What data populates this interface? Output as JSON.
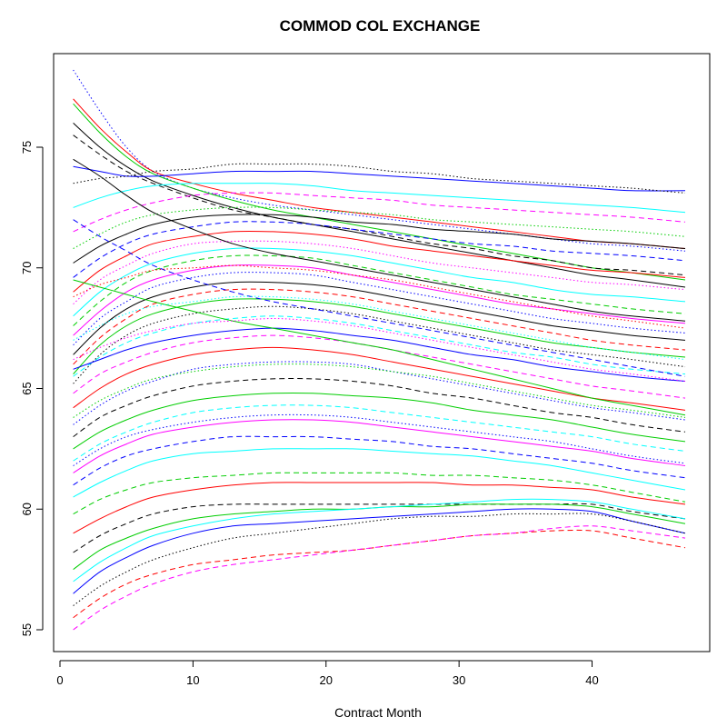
{
  "chart_data": {
    "type": "line",
    "title": "COMMOD COL EXCHANGE",
    "xlabel": "Contract Month",
    "ylabel": "",
    "xlim": [
      0,
      47
    ],
    "ylim": [
      55,
      78
    ],
    "x_ticks": [
      0,
      10,
      20,
      30,
      40
    ],
    "y_ticks": [
      55,
      60,
      65,
      70,
      75
    ],
    "x_tick_labels": [
      "0",
      "10",
      "20",
      "30",
      "40"
    ],
    "y_tick_labels": [
      "55",
      "60",
      "65",
      "70",
      "75"
    ],
    "x": [
      1,
      3,
      5,
      7,
      10,
      13,
      16,
      19,
      22,
      25,
      28,
      31,
      34,
      37,
      40,
      43,
      47
    ],
    "color_cycle": [
      "#000000",
      "#ff0000",
      "#00cd00",
      "#0000ff",
      "#00ffff",
      "#ff00ff"
    ],
    "series": [
      {
        "values": [
          78.2,
          76.5,
          75.0,
          74.0,
          73.3,
          72.9,
          72.6,
          72.4,
          72.2,
          72.0,
          71.8,
          71.6,
          71.4,
          71.2,
          71.0,
          70.9,
          70.7
        ],
        "style": "dotted",
        "color": "#0000ff"
      },
      {
        "values": [
          77.0,
          75.8,
          74.8,
          74.0,
          73.5,
          73.1,
          72.8,
          72.5,
          72.3,
          72.1,
          71.9,
          71.7,
          71.5,
          71.3,
          71.1,
          71.0,
          70.8
        ],
        "style": "solid",
        "color": "#ff0000"
      },
      {
        "values": [
          76.8,
          75.6,
          74.6,
          73.9,
          73.3,
          72.8,
          72.4,
          72.1,
          71.8,
          71.5,
          71.2,
          70.9,
          70.6,
          70.3,
          70.0,
          69.8,
          69.5
        ],
        "style": "solid",
        "color": "#00cd00"
      },
      {
        "values": [
          76.0,
          75.0,
          74.2,
          73.6,
          73.0,
          72.5,
          72.1,
          71.8,
          71.5,
          71.2,
          70.9,
          70.6,
          70.3,
          70.0,
          69.7,
          69.5,
          69.2
        ],
        "style": "solid",
        "color": "#000000"
      },
      {
        "values": [
          75.5,
          74.7,
          74.0,
          73.5,
          72.9,
          72.4,
          72.1,
          71.8,
          71.6,
          71.3,
          71.0,
          70.8,
          70.5,
          70.3,
          70.0,
          69.9,
          69.7
        ],
        "style": "dashed",
        "color": "#000000"
      },
      {
        "values": [
          74.2,
          74.0,
          73.8,
          73.8,
          73.9,
          74.0,
          74.0,
          74.0,
          73.9,
          73.8,
          73.7,
          73.6,
          73.5,
          73.4,
          73.3,
          73.2,
          73.2
        ],
        "style": "solid",
        "color": "#0000ff"
      },
      {
        "values": [
          73.5,
          73.7,
          73.8,
          74.0,
          74.1,
          74.3,
          74.3,
          74.3,
          74.2,
          74.0,
          73.9,
          73.7,
          73.6,
          73.5,
          73.4,
          73.3,
          73.1
        ],
        "style": "dotted",
        "color": "#000000"
      },
      {
        "values": [
          72.5,
          72.9,
          73.2,
          73.4,
          73.5,
          73.5,
          73.5,
          73.4,
          73.2,
          73.1,
          73.0,
          72.9,
          72.8,
          72.7,
          72.6,
          72.5,
          72.3
        ],
        "style": "solid",
        "color": "#00ffff"
      },
      {
        "values": [
          71.5,
          72.0,
          72.4,
          72.7,
          73.0,
          73.1,
          73.1,
          73.0,
          72.9,
          72.8,
          72.6,
          72.5,
          72.4,
          72.3,
          72.2,
          72.1,
          71.9
        ],
        "style": "dashed",
        "color": "#ff00ff"
      },
      {
        "values": [
          70.8,
          71.4,
          71.9,
          72.2,
          72.4,
          72.5,
          72.5,
          72.4,
          72.3,
          72.2,
          72.0,
          71.9,
          71.8,
          71.7,
          71.6,
          71.5,
          71.3
        ],
        "style": "dotted",
        "color": "#00cd00"
      },
      {
        "values": [
          70.2,
          70.9,
          71.4,
          71.8,
          72.1,
          72.2,
          72.2,
          72.1,
          71.9,
          71.8,
          71.6,
          71.5,
          71.4,
          71.2,
          71.1,
          71.0,
          70.8
        ],
        "style": "solid",
        "color": "#000000"
      },
      {
        "values": [
          69.6,
          70.4,
          71.0,
          71.4,
          71.7,
          71.9,
          71.9,
          71.8,
          71.6,
          71.4,
          71.2,
          71.0,
          70.9,
          70.7,
          70.6,
          70.5,
          70.3
        ],
        "style": "dashed",
        "color": "#0000ff"
      },
      {
        "values": [
          69.0,
          69.9,
          70.5,
          71.0,
          71.3,
          71.5,
          71.5,
          71.4,
          71.2,
          70.9,
          70.7,
          70.5,
          70.3,
          70.1,
          69.9,
          69.8,
          69.6
        ],
        "style": "solid",
        "color": "#ff0000"
      },
      {
        "values": [
          68.5,
          69.5,
          70.1,
          70.6,
          71.0,
          71.1,
          71.1,
          71.0,
          70.8,
          70.5,
          70.2,
          70.0,
          69.8,
          69.6,
          69.4,
          69.3,
          69.1
        ],
        "style": "dotted",
        "color": "#ff00ff"
      },
      {
        "values": [
          68.0,
          69.0,
          69.7,
          70.2,
          70.6,
          70.8,
          70.8,
          70.7,
          70.5,
          70.2,
          69.9,
          69.6,
          69.4,
          69.1,
          68.9,
          68.8,
          68.6
        ],
        "style": "solid",
        "color": "#00ffff"
      },
      {
        "values": [
          67.6,
          68.6,
          69.4,
          69.9,
          70.3,
          70.5,
          70.5,
          70.4,
          70.1,
          69.8,
          69.5,
          69.2,
          68.9,
          68.7,
          68.5,
          68.3,
          68.1
        ],
        "style": "dashed",
        "color": "#00cd00"
      },
      {
        "values": [
          67.2,
          68.2,
          69.0,
          69.5,
          69.9,
          70.1,
          70.1,
          70.0,
          69.7,
          69.4,
          69.1,
          68.8,
          68.5,
          68.3,
          68.1,
          67.9,
          67.7
        ],
        "style": "solid",
        "color": "#ff00ff"
      },
      {
        "values": [
          66.8,
          67.9,
          68.6,
          69.2,
          69.6,
          69.8,
          69.8,
          69.7,
          69.4,
          69.1,
          68.8,
          68.5,
          68.2,
          67.9,
          67.7,
          67.5,
          67.3
        ],
        "style": "dotted",
        "color": "#0000ff"
      },
      {
        "values": [
          66.4,
          67.5,
          68.3,
          68.8,
          69.2,
          69.4,
          69.4,
          69.3,
          69.1,
          68.8,
          68.5,
          68.2,
          67.9,
          67.6,
          67.4,
          67.2,
          67.0
        ],
        "style": "solid",
        "color": "#000000"
      },
      {
        "values": [
          66.0,
          67.1,
          67.9,
          68.5,
          68.9,
          69.1,
          69.1,
          69.0,
          68.8,
          68.5,
          68.2,
          67.9,
          67.6,
          67.3,
          67.0,
          66.8,
          66.6
        ],
        "style": "dashed",
        "color": "#ff0000"
      },
      {
        "values": [
          65.6,
          66.8,
          67.6,
          68.1,
          68.5,
          68.7,
          68.7,
          68.6,
          68.4,
          68.1,
          67.8,
          67.5,
          67.2,
          66.9,
          66.7,
          66.5,
          66.3
        ],
        "style": "solid",
        "color": "#00cd00"
      },
      {
        "values": [
          65.2,
          66.4,
          67.2,
          67.7,
          68.1,
          68.3,
          68.4,
          68.3,
          68.1,
          67.8,
          67.5,
          67.2,
          66.9,
          66.6,
          66.4,
          66.2,
          65.9
        ],
        "style": "dotted",
        "color": "#000000"
      },
      {
        "values": [
          65.5,
          66.3,
          66.9,
          67.3,
          67.7,
          67.9,
          68.0,
          67.9,
          67.7,
          67.4,
          67.1,
          66.8,
          66.5,
          66.3,
          66.0,
          65.8,
          65.6
        ],
        "style": "dashed",
        "color": "#00ffff"
      },
      {
        "values": [
          65.8,
          66.2,
          66.6,
          66.9,
          67.2,
          67.4,
          67.5,
          67.4,
          67.2,
          67.0,
          66.7,
          66.4,
          66.2,
          65.9,
          65.7,
          65.5,
          65.3
        ],
        "style": "solid",
        "color": "#0000ff"
      },
      {
        "values": [
          64.8,
          65.6,
          66.1,
          66.5,
          66.9,
          67.1,
          67.2,
          67.1,
          66.9,
          66.6,
          66.3,
          66.0,
          65.7,
          65.4,
          65.1,
          64.9,
          64.6
        ],
        "style": "dashed",
        "color": "#ff00ff"
      },
      {
        "values": [
          64.2,
          65.0,
          65.6,
          66.0,
          66.4,
          66.6,
          66.7,
          66.6,
          66.4,
          66.1,
          65.8,
          65.5,
          65.2,
          64.9,
          64.6,
          64.4,
          64.1
        ],
        "style": "solid",
        "color": "#ff0000"
      },
      {
        "values": [
          63.5,
          64.3,
          64.9,
          65.3,
          65.8,
          66.0,
          66.1,
          66.1,
          66.0,
          65.7,
          65.4,
          65.1,
          64.8,
          64.5,
          64.2,
          64.0,
          63.7
        ],
        "style": "dotted",
        "color": "#0000ff"
      },
      {
        "values": [
          63.0,
          63.8,
          64.3,
          64.7,
          65.1,
          65.3,
          65.4,
          65.4,
          65.3,
          65.1,
          64.8,
          64.6,
          64.3,
          64.0,
          63.8,
          63.5,
          63.2
        ],
        "style": "dashed",
        "color": "#000000"
      },
      {
        "values": [
          62.5,
          63.2,
          63.7,
          64.1,
          64.5,
          64.7,
          64.8,
          64.8,
          64.7,
          64.6,
          64.4,
          64.1,
          63.9,
          63.7,
          63.4,
          63.1,
          62.8
        ],
        "style": "solid",
        "color": "#00cd00"
      },
      {
        "values": [
          62.0,
          62.7,
          63.2,
          63.6,
          64.0,
          64.2,
          64.3,
          64.3,
          64.2,
          64.0,
          63.8,
          63.6,
          63.4,
          63.2,
          63.0,
          62.7,
          62.4
        ],
        "style": "dashed",
        "color": "#00ffff"
      },
      {
        "values": [
          61.5,
          62.2,
          62.7,
          63.1,
          63.4,
          63.6,
          63.7,
          63.7,
          63.6,
          63.4,
          63.2,
          63.0,
          62.8,
          62.6,
          62.4,
          62.1,
          61.8
        ],
        "style": "solid",
        "color": "#ff00ff"
      },
      {
        "values": [
          61.0,
          61.7,
          62.2,
          62.5,
          62.8,
          63.0,
          63.0,
          63.0,
          62.9,
          62.8,
          62.6,
          62.5,
          62.3,
          62.1,
          61.9,
          61.6,
          61.3
        ],
        "style": "dashed",
        "color": "#0000ff"
      },
      {
        "values": [
          60.5,
          61.1,
          61.6,
          62.0,
          62.3,
          62.4,
          62.5,
          62.5,
          62.5,
          62.4,
          62.3,
          62.2,
          62.0,
          61.8,
          61.5,
          61.2,
          60.8
        ],
        "style": "solid",
        "color": "#00ffff"
      },
      {
        "values": [
          59.8,
          60.4,
          60.8,
          61.1,
          61.3,
          61.4,
          61.5,
          61.5,
          61.5,
          61.5,
          61.4,
          61.4,
          61.3,
          61.2,
          61.0,
          60.7,
          60.3
        ],
        "style": "dashed",
        "color": "#00cd00"
      },
      {
        "values": [
          59.0,
          59.6,
          60.1,
          60.5,
          60.8,
          61.0,
          61.1,
          61.1,
          61.1,
          61.1,
          61.1,
          61.0,
          61.0,
          60.9,
          60.8,
          60.5,
          60.2
        ],
        "style": "solid",
        "color": "#ff0000"
      },
      {
        "values": [
          58.2,
          58.9,
          59.4,
          59.8,
          60.1,
          60.2,
          60.2,
          60.2,
          60.2,
          60.2,
          60.2,
          60.2,
          60.2,
          60.2,
          60.2,
          59.9,
          59.6
        ],
        "style": "dashed",
        "color": "#000000"
      },
      {
        "values": [
          57.5,
          58.3,
          58.8,
          59.2,
          59.6,
          59.8,
          59.9,
          60.0,
          60.0,
          60.1,
          60.1,
          60.2,
          60.2,
          60.2,
          60.1,
          59.8,
          59.4
        ],
        "style": "solid",
        "color": "#00cd00"
      },
      {
        "values": [
          57.0,
          57.8,
          58.4,
          58.9,
          59.3,
          59.6,
          59.8,
          59.9,
          60.0,
          60.1,
          60.2,
          60.3,
          60.4,
          60.4,
          60.3,
          60.0,
          59.6
        ],
        "style": "solid",
        "color": "#00ffff"
      },
      {
        "values": [
          56.5,
          57.4,
          58.0,
          58.5,
          59.0,
          59.3,
          59.4,
          59.5,
          59.6,
          59.7,
          59.8,
          59.9,
          60.0,
          60.0,
          59.9,
          59.5,
          59.0
        ],
        "style": "solid",
        "color": "#0000ff"
      },
      {
        "values": [
          56.0,
          56.8,
          57.4,
          57.9,
          58.4,
          58.8,
          59.0,
          59.2,
          59.4,
          59.6,
          59.7,
          59.7,
          59.8,
          59.8,
          59.8,
          59.5,
          59.0
        ],
        "style": "dotted",
        "color": "#000000"
      },
      {
        "values": [
          55.5,
          56.3,
          56.9,
          57.3,
          57.7,
          57.9,
          58.1,
          58.2,
          58.3,
          58.5,
          58.7,
          58.9,
          59.0,
          59.1,
          59.1,
          58.8,
          58.4
        ],
        "style": "dashed",
        "color": "#ff0000"
      },
      {
        "values": [
          55.0,
          55.8,
          56.4,
          56.9,
          57.4,
          57.7,
          57.9,
          58.1,
          58.3,
          58.5,
          58.7,
          58.9,
          59.0,
          59.2,
          59.3,
          59.1,
          58.8
        ],
        "style": "dashed",
        "color": "#ff00ff"
      },
      {
        "values": [
          74.5,
          73.8,
          73.0,
          72.3,
          71.6,
          71.0,
          70.6,
          70.3,
          70.0,
          69.7,
          69.4,
          69.1,
          68.8,
          68.5,
          68.2,
          68.0,
          67.8
        ],
        "style": "solid",
        "color": "#000000"
      },
      {
        "values": [
          72.0,
          71.3,
          70.7,
          70.1,
          69.5,
          69.0,
          68.6,
          68.3,
          68.0,
          67.7,
          67.4,
          67.1,
          66.8,
          66.5,
          66.2,
          65.9,
          65.5
        ],
        "style": "dashed",
        "color": "#0000ff"
      },
      {
        "values": [
          69.5,
          69.2,
          68.9,
          68.6,
          68.2,
          67.8,
          67.5,
          67.2,
          66.9,
          66.6,
          66.2,
          65.8,
          65.4,
          65.0,
          64.6,
          64.3,
          63.9
        ],
        "style": "solid",
        "color": "#00cd00"
      },
      {
        "values": [
          68.8,
          69.3,
          69.6,
          69.9,
          70.0,
          70.1,
          70.0,
          69.9,
          69.7,
          69.5,
          69.2,
          68.9,
          68.6,
          68.3,
          68.0,
          67.8,
          67.5
        ],
        "style": "dotted",
        "color": "#ff0000"
      },
      {
        "values": [
          67.0,
          67.6,
          68.1,
          68.4,
          68.6,
          68.8,
          68.8,
          68.7,
          68.5,
          68.2,
          67.9,
          67.6,
          67.3,
          67.0,
          66.7,
          66.5,
          66.2
        ],
        "style": "dotted",
        "color": "#00ffff"
      },
      {
        "values": [
          66.2,
          66.7,
          67.1,
          67.4,
          67.7,
          67.8,
          67.9,
          67.8,
          67.6,
          67.3,
          67.0,
          66.7,
          66.4,
          66.1,
          65.8,
          65.6,
          65.3
        ],
        "style": "dotted",
        "color": "#ff00ff"
      },
      {
        "values": [
          63.8,
          64.5,
          65.0,
          65.4,
          65.7,
          65.9,
          66.0,
          66.0,
          65.9,
          65.7,
          65.5,
          65.2,
          64.9,
          64.6,
          64.3,
          64.1,
          63.8
        ],
        "style": "dotted",
        "color": "#00cd00"
      },
      {
        "values": [
          61.8,
          62.5,
          63.0,
          63.3,
          63.6,
          63.8,
          63.9,
          63.9,
          63.8,
          63.6,
          63.4,
          63.2,
          63.0,
          62.8,
          62.5,
          62.2,
          61.9
        ],
        "style": "dotted",
        "color": "#0000ff"
      }
    ]
  }
}
